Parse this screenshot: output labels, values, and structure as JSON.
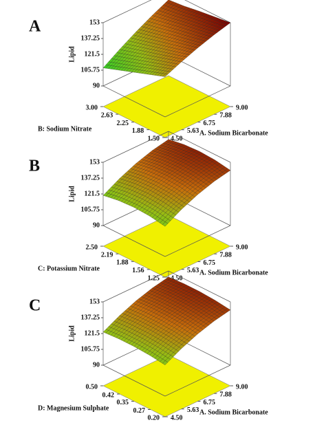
{
  "chart_data": [
    {
      "type": "surface",
      "panel": "A",
      "zlabel": "Lipid",
      "xlabel": "A. Sodium Bicarbonate",
      "ylabel": "B: Sodium Nitrate",
      "xlim": [
        4.5,
        9
      ],
      "xticks": [
        {
          "value": 4.5,
          "label": "4.50"
        },
        5.63,
        6.75,
        7.88,
        {
          "value": 9,
          "label": "9.00"
        }
      ],
      "ylim": [
        1.5,
        3
      ],
      "yticks": [
        {
          "value": 1.5,
          "label": "1.50"
        },
        1.88,
        2.25,
        2.63,
        {
          "value": 3,
          "label": "3.00"
        }
      ],
      "zlim": [
        90,
        153
      ],
      "zticks": [
        90,
        105.75,
        121.5,
        137.25,
        153
      ],
      "x": [
        4.5,
        5.625,
        6.75,
        7.875,
        9
      ],
      "y": [
        1.5,
        1.875,
        2.25,
        2.625,
        3
      ],
      "z": [
        [
          130,
          137.1,
          143.3,
          148.6,
          153
        ],
        [
          124.5,
          132.5,
          139.5,
          145.7,
          151
        ],
        [
          119,
          127.8,
          135.8,
          143.1,
          149
        ],
        [
          113.5,
          123.2,
          132,
          140,
          146.5
        ],
        [
          108,
          118.6,
          128.3,
          137.1,
          145
        ]
      ]
    },
    {
      "type": "surface",
      "panel": "B",
      "zlabel": "Lipid",
      "xlabel": "A. Sodium Bicarbonate",
      "ylabel": "C: Potassium Nitrate",
      "xlim": [
        4.5,
        9
      ],
      "xticks": [
        {
          "value": 4.5,
          "label": "4.50"
        },
        5.63,
        6.75,
        7.88,
        {
          "value": 9,
          "label": "9.00"
        }
      ],
      "ylim": [
        1.25,
        2.5
      ],
      "yticks": [
        1.25,
        1.56,
        1.88,
        2.19,
        {
          "value": 2.5,
          "label": "2.50"
        }
      ],
      "zlim": [
        90,
        153
      ],
      "zticks": [
        90,
        105.75,
        121.5,
        137.25,
        153
      ],
      "x": [
        4.5,
        5.625,
        6.75,
        7.875,
        9
      ],
      "y": [
        1.25,
        1.5625,
        1.875,
        2.1875,
        2.5
      ],
      "z": [
        [
          120,
          129.1,
          136.3,
          141.6,
          145
        ],
        [
          122.6,
          131.7,
          138.9,
          144.2,
          147.6
        ],
        [
          123.5,
          132.6,
          139.8,
          145.1,
          148.5
        ],
        [
          122.6,
          131.7,
          138.9,
          144.2,
          147.6
        ],
        [
          120,
          129.1,
          136.3,
          141.6,
          145
        ]
      ]
    },
    {
      "type": "surface",
      "panel": "C",
      "zlabel": "Lipid",
      "xlabel": "A. Sodium Bicarbonate",
      "ylabel": "D: Magnesium Sulphate",
      "xlim": [
        4.5,
        9
      ],
      "xticks": [
        {
          "value": 4.5,
          "label": "4.50"
        },
        5.63,
        6.75,
        7.88,
        {
          "value": 9,
          "label": "9.00"
        }
      ],
      "ylim": [
        0.2,
        0.5
      ],
      "yticks": [
        {
          "value": 0.2,
          "label": "0.20"
        },
        0.27,
        0.35,
        0.42,
        {
          "value": 0.5,
          "label": "0.50"
        }
      ],
      "zlim": [
        90,
        153
      ],
      "zticks": [
        90,
        105.75,
        121.5,
        137.25,
        153
      ],
      "x": [
        4.5,
        5.625,
        6.75,
        7.875,
        9
      ],
      "y": [
        0.2,
        0.275,
        0.35,
        0.425,
        0.5
      ],
      "z": [
        [
          121,
          129.6,
          136.5,
          141.6,
          145
        ],
        [
          123,
          131.6,
          138.5,
          143.6,
          147
        ],
        [
          124,
          132.6,
          139.5,
          144.6,
          148
        ],
        [
          124,
          132.6,
          139.5,
          144.6,
          148
        ],
        [
          123,
          131.6,
          138.5,
          143.6,
          147
        ]
      ]
    }
  ]
}
